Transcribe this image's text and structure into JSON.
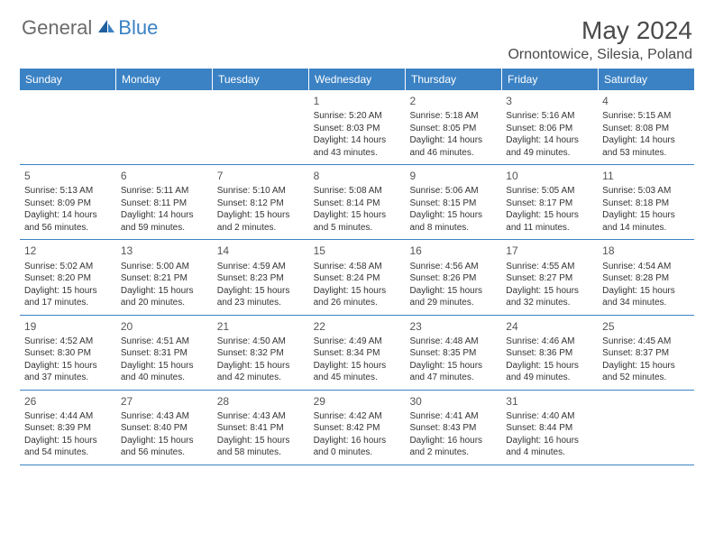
{
  "logo": {
    "general": "General",
    "blue": "Blue"
  },
  "title": "May 2024",
  "location": "Ornontowice, Silesia, Poland",
  "weekdays": [
    "Sunday",
    "Monday",
    "Tuesday",
    "Wednesday",
    "Thursday",
    "Friday",
    "Saturday"
  ],
  "colors": {
    "header_bg": "#3b82c4",
    "header_text": "#ffffff",
    "title_color": "#4a4a4a",
    "logo_gray": "#6b6b6b",
    "logo_blue": "#3b82c4",
    "cell_border": "#3b82c4",
    "body_text": "#333333"
  },
  "weeks": [
    [
      {
        "empty": true
      },
      {
        "empty": true
      },
      {
        "empty": true
      },
      {
        "day": "1",
        "sunrise": "Sunrise: 5:20 AM",
        "sunset": "Sunset: 8:03 PM",
        "daylight": "Daylight: 14 hours and 43 minutes."
      },
      {
        "day": "2",
        "sunrise": "Sunrise: 5:18 AM",
        "sunset": "Sunset: 8:05 PM",
        "daylight": "Daylight: 14 hours and 46 minutes."
      },
      {
        "day": "3",
        "sunrise": "Sunrise: 5:16 AM",
        "sunset": "Sunset: 8:06 PM",
        "daylight": "Daylight: 14 hours and 49 minutes."
      },
      {
        "day": "4",
        "sunrise": "Sunrise: 5:15 AM",
        "sunset": "Sunset: 8:08 PM",
        "daylight": "Daylight: 14 hours and 53 minutes."
      }
    ],
    [
      {
        "day": "5",
        "sunrise": "Sunrise: 5:13 AM",
        "sunset": "Sunset: 8:09 PM",
        "daylight": "Daylight: 14 hours and 56 minutes."
      },
      {
        "day": "6",
        "sunrise": "Sunrise: 5:11 AM",
        "sunset": "Sunset: 8:11 PM",
        "daylight": "Daylight: 14 hours and 59 minutes."
      },
      {
        "day": "7",
        "sunrise": "Sunrise: 5:10 AM",
        "sunset": "Sunset: 8:12 PM",
        "daylight": "Daylight: 15 hours and 2 minutes."
      },
      {
        "day": "8",
        "sunrise": "Sunrise: 5:08 AM",
        "sunset": "Sunset: 8:14 PM",
        "daylight": "Daylight: 15 hours and 5 minutes."
      },
      {
        "day": "9",
        "sunrise": "Sunrise: 5:06 AM",
        "sunset": "Sunset: 8:15 PM",
        "daylight": "Daylight: 15 hours and 8 minutes."
      },
      {
        "day": "10",
        "sunrise": "Sunrise: 5:05 AM",
        "sunset": "Sunset: 8:17 PM",
        "daylight": "Daylight: 15 hours and 11 minutes."
      },
      {
        "day": "11",
        "sunrise": "Sunrise: 5:03 AM",
        "sunset": "Sunset: 8:18 PM",
        "daylight": "Daylight: 15 hours and 14 minutes."
      }
    ],
    [
      {
        "day": "12",
        "sunrise": "Sunrise: 5:02 AM",
        "sunset": "Sunset: 8:20 PM",
        "daylight": "Daylight: 15 hours and 17 minutes."
      },
      {
        "day": "13",
        "sunrise": "Sunrise: 5:00 AM",
        "sunset": "Sunset: 8:21 PM",
        "daylight": "Daylight: 15 hours and 20 minutes."
      },
      {
        "day": "14",
        "sunrise": "Sunrise: 4:59 AM",
        "sunset": "Sunset: 8:23 PM",
        "daylight": "Daylight: 15 hours and 23 minutes."
      },
      {
        "day": "15",
        "sunrise": "Sunrise: 4:58 AM",
        "sunset": "Sunset: 8:24 PM",
        "daylight": "Daylight: 15 hours and 26 minutes."
      },
      {
        "day": "16",
        "sunrise": "Sunrise: 4:56 AM",
        "sunset": "Sunset: 8:26 PM",
        "daylight": "Daylight: 15 hours and 29 minutes."
      },
      {
        "day": "17",
        "sunrise": "Sunrise: 4:55 AM",
        "sunset": "Sunset: 8:27 PM",
        "daylight": "Daylight: 15 hours and 32 minutes."
      },
      {
        "day": "18",
        "sunrise": "Sunrise: 4:54 AM",
        "sunset": "Sunset: 8:28 PM",
        "daylight": "Daylight: 15 hours and 34 minutes."
      }
    ],
    [
      {
        "day": "19",
        "sunrise": "Sunrise: 4:52 AM",
        "sunset": "Sunset: 8:30 PM",
        "daylight": "Daylight: 15 hours and 37 minutes."
      },
      {
        "day": "20",
        "sunrise": "Sunrise: 4:51 AM",
        "sunset": "Sunset: 8:31 PM",
        "daylight": "Daylight: 15 hours and 40 minutes."
      },
      {
        "day": "21",
        "sunrise": "Sunrise: 4:50 AM",
        "sunset": "Sunset: 8:32 PM",
        "daylight": "Daylight: 15 hours and 42 minutes."
      },
      {
        "day": "22",
        "sunrise": "Sunrise: 4:49 AM",
        "sunset": "Sunset: 8:34 PM",
        "daylight": "Daylight: 15 hours and 45 minutes."
      },
      {
        "day": "23",
        "sunrise": "Sunrise: 4:48 AM",
        "sunset": "Sunset: 8:35 PM",
        "daylight": "Daylight: 15 hours and 47 minutes."
      },
      {
        "day": "24",
        "sunrise": "Sunrise: 4:46 AM",
        "sunset": "Sunset: 8:36 PM",
        "daylight": "Daylight: 15 hours and 49 minutes."
      },
      {
        "day": "25",
        "sunrise": "Sunrise: 4:45 AM",
        "sunset": "Sunset: 8:37 PM",
        "daylight": "Daylight: 15 hours and 52 minutes."
      }
    ],
    [
      {
        "day": "26",
        "sunrise": "Sunrise: 4:44 AM",
        "sunset": "Sunset: 8:39 PM",
        "daylight": "Daylight: 15 hours and 54 minutes."
      },
      {
        "day": "27",
        "sunrise": "Sunrise: 4:43 AM",
        "sunset": "Sunset: 8:40 PM",
        "daylight": "Daylight: 15 hours and 56 minutes."
      },
      {
        "day": "28",
        "sunrise": "Sunrise: 4:43 AM",
        "sunset": "Sunset: 8:41 PM",
        "daylight": "Daylight: 15 hours and 58 minutes."
      },
      {
        "day": "29",
        "sunrise": "Sunrise: 4:42 AM",
        "sunset": "Sunset: 8:42 PM",
        "daylight": "Daylight: 16 hours and 0 minutes."
      },
      {
        "day": "30",
        "sunrise": "Sunrise: 4:41 AM",
        "sunset": "Sunset: 8:43 PM",
        "daylight": "Daylight: 16 hours and 2 minutes."
      },
      {
        "day": "31",
        "sunrise": "Sunrise: 4:40 AM",
        "sunset": "Sunset: 8:44 PM",
        "daylight": "Daylight: 16 hours and 4 minutes."
      },
      {
        "empty": true
      }
    ]
  ]
}
